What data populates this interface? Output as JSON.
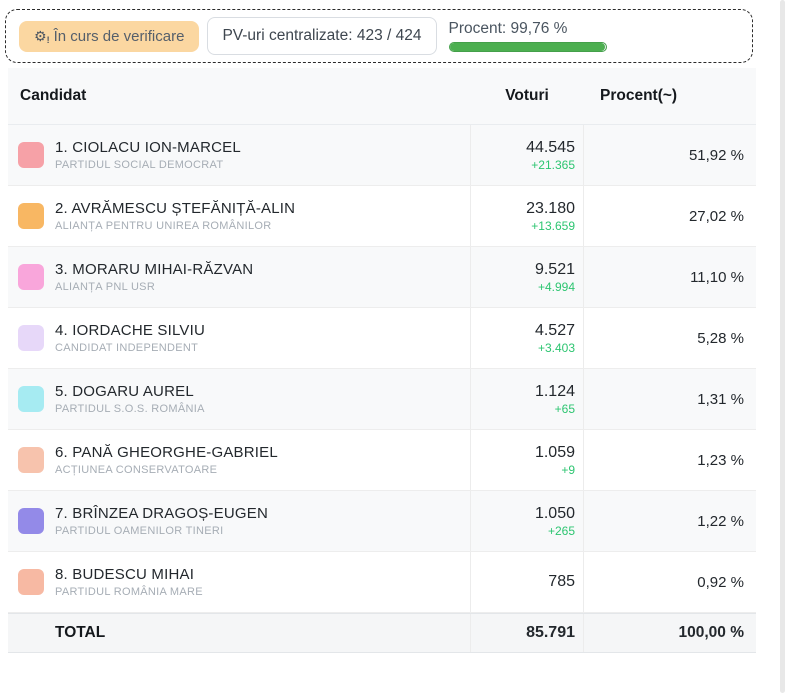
{
  "status_bar": {
    "badge": {
      "label": "În curs de verificare",
      "icon": "gear-alert-icon",
      "bg_color": "#fbd7a1",
      "text_color": "#555f6b"
    },
    "pv_box": {
      "label": "PV-uri centralizate: 423 / 424"
    },
    "progress": {
      "label": "Procent: 99,76 %",
      "percent": 99.76,
      "bar_color": "#4caf50"
    }
  },
  "table": {
    "headers": {
      "candidate": "Candidat",
      "votes": "Voturi",
      "percent": "Procent(~)"
    },
    "rows": [
      {
        "name": "1. CIOLACU ION-MARCEL",
        "party": "PARTIDUL SOCIAL DEMOCRAT",
        "votes": "44.545",
        "delta": "+21.365",
        "percent": "51,92 %",
        "color": "#f6a1a7"
      },
      {
        "name": "2. AVRĂMESCU ȘTEFĂNIȚĂ-ALIN",
        "party": "ALIANȚA PENTRU UNIREA ROMÂNILOR",
        "votes": "23.180",
        "delta": "+13.659",
        "percent": "27,02 %",
        "color": "#f8b763"
      },
      {
        "name": "3. MORARU MIHAI-RĂZVAN",
        "party": "ALIANȚA PNL USR",
        "votes": "9.521",
        "delta": "+4.994",
        "percent": "11,10 %",
        "color": "#f9a6db"
      },
      {
        "name": "4. IORDACHE SILVIU",
        "party": "CANDIDAT INDEPENDENT",
        "votes": "4.527",
        "delta": "+3.403",
        "percent": "5,28 %",
        "color": "#e7d8f9"
      },
      {
        "name": "5. DOGARU AUREL",
        "party": "PARTIDUL S.O.S. ROMÂNIA",
        "votes": "1.124",
        "delta": "+65",
        "percent": "1,31 %",
        "color": "#a6ebf2"
      },
      {
        "name": "6. PANĂ GHEORGHE-GABRIEL",
        "party": "ACȚIUNEA CONSERVATOARE",
        "votes": "1.059",
        "delta": "+9",
        "percent": "1,23 %",
        "color": "#f7c3ad"
      },
      {
        "name": "7. BRÎNZEA DRAGOȘ-EUGEN",
        "party": "PARTIDUL OAMENILOR TINERI",
        "votes": "1.050",
        "delta": "+265",
        "percent": "1,22 %",
        "color": "#938ae8"
      },
      {
        "name": "8. BUDESCU MIHAI",
        "party": "PARTIDUL ROMÂNIA MARE",
        "votes": "785",
        "delta": "",
        "percent": "0,92 %",
        "color": "#f7b9a3"
      }
    ],
    "delta_color": "#2dc571",
    "total": {
      "label": "TOTAL",
      "votes": "85.791",
      "percent": "100,00 %"
    }
  }
}
